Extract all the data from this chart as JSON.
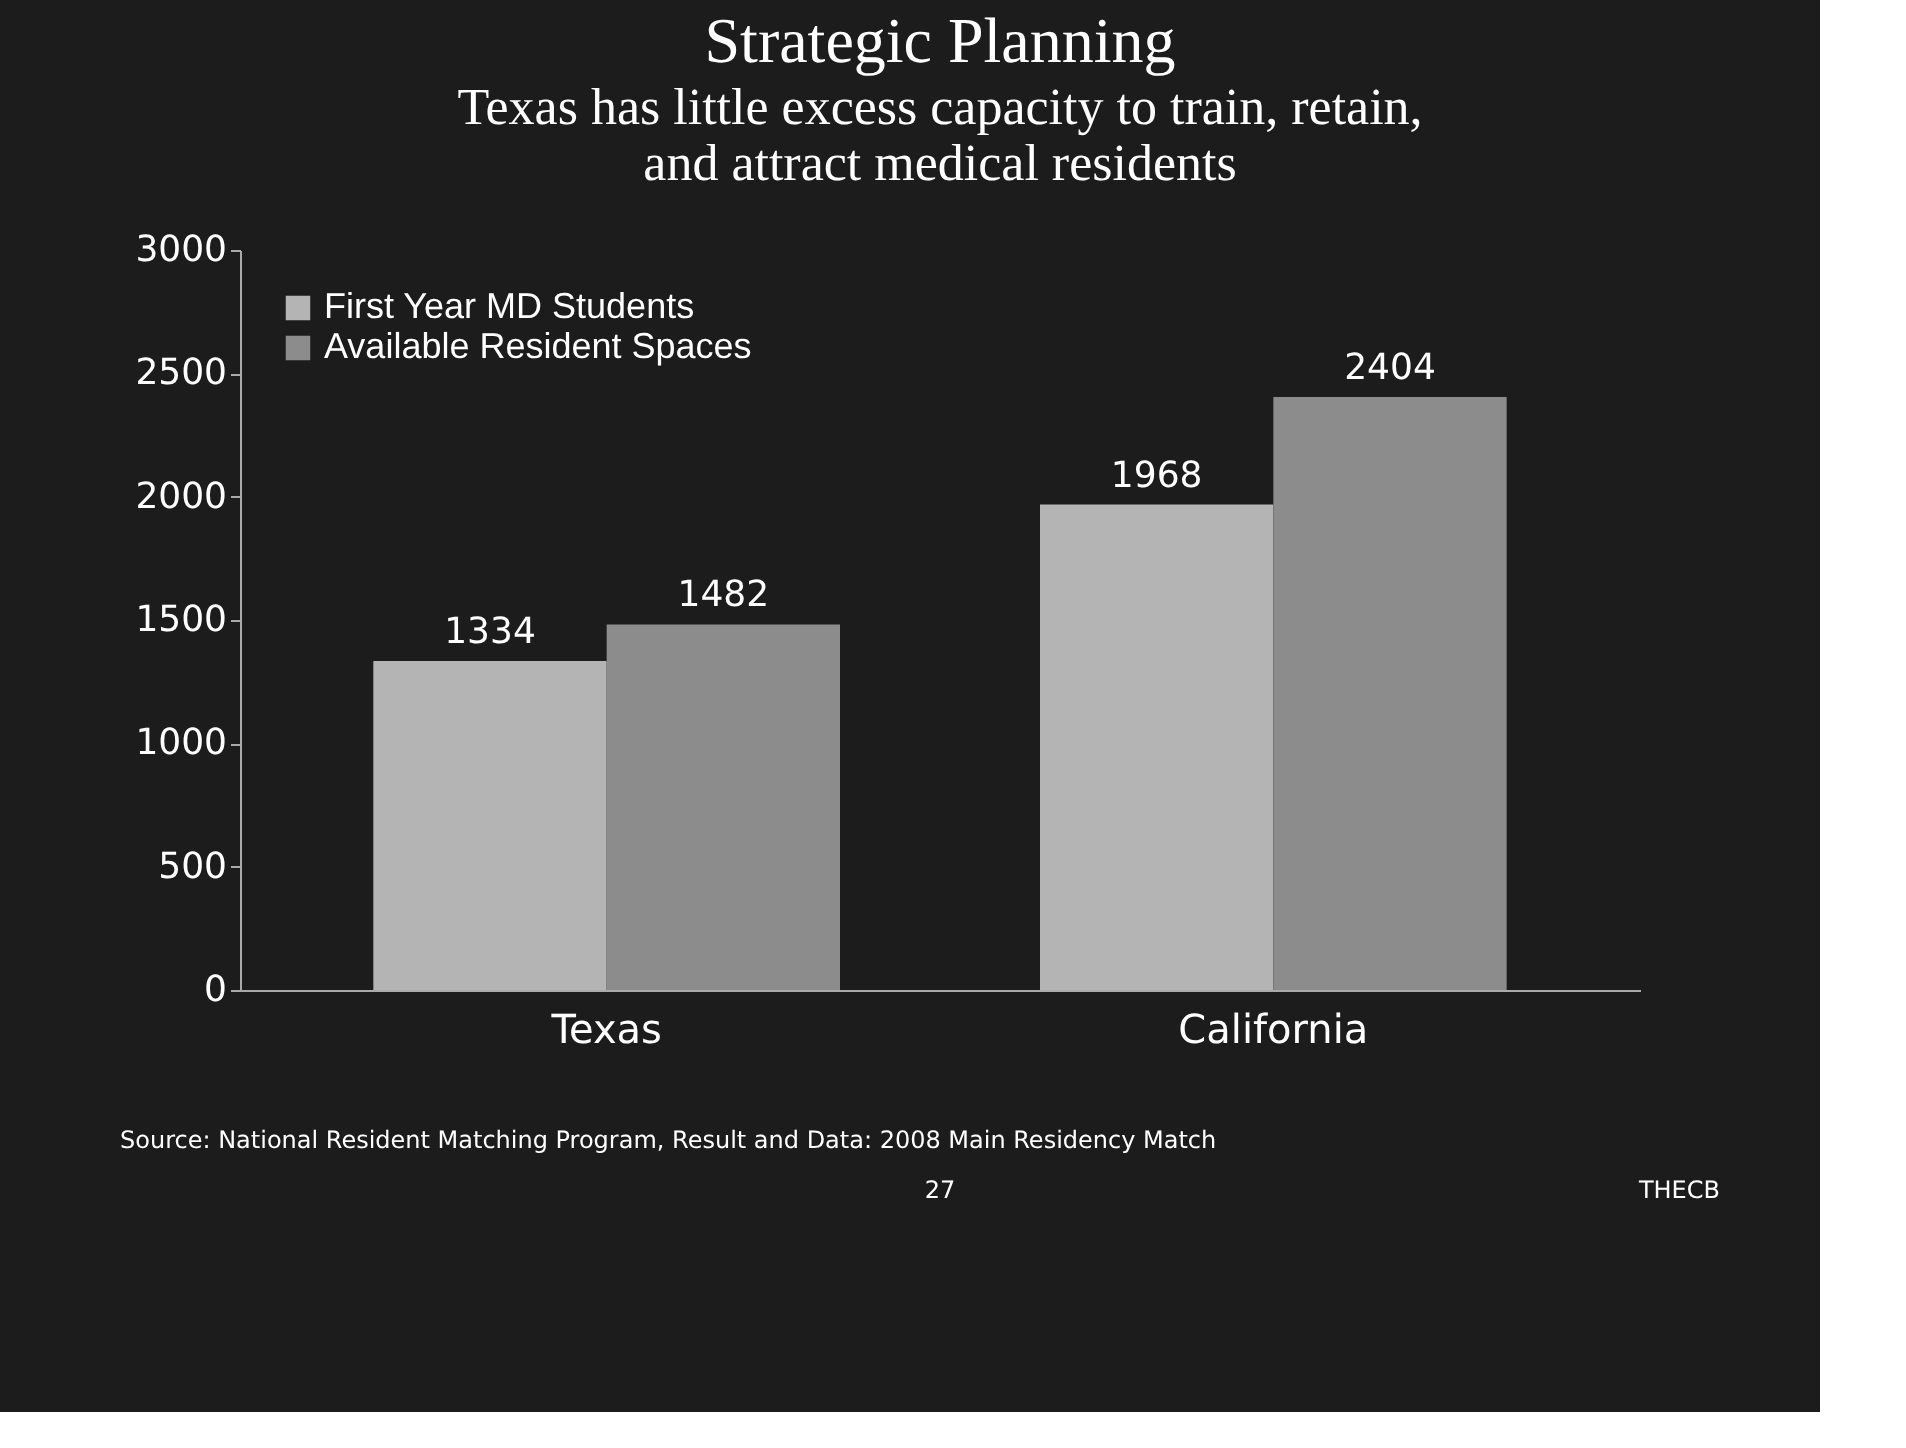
{
  "chart_data": {
    "type": "bar",
    "title": "Strategic Planning",
    "subtitle": "Texas has little excess capacity to train, retain, and attract medical residents",
    "categories": [
      "Texas",
      "California"
    ],
    "series": [
      {
        "name": "First Year MD Students",
        "color": "#b4b4b4",
        "values": [
          1334,
          1968
        ]
      },
      {
        "name": "Available Resident Spaces",
        "color": "#8c8c8c",
        "values": [
          1482,
          2404
        ]
      }
    ],
    "ylim": [
      0,
      3000
    ],
    "yticks": [
      0,
      500,
      1000,
      1500,
      2000,
      2500,
      3000
    ],
    "grid": false,
    "legend": "top left",
    "data_labels": true,
    "annotations": [
      "Source: National Resident Matching Program, Result and Data: 2008 Main Residency Match",
      "27",
      "THECB"
    ]
  }
}
